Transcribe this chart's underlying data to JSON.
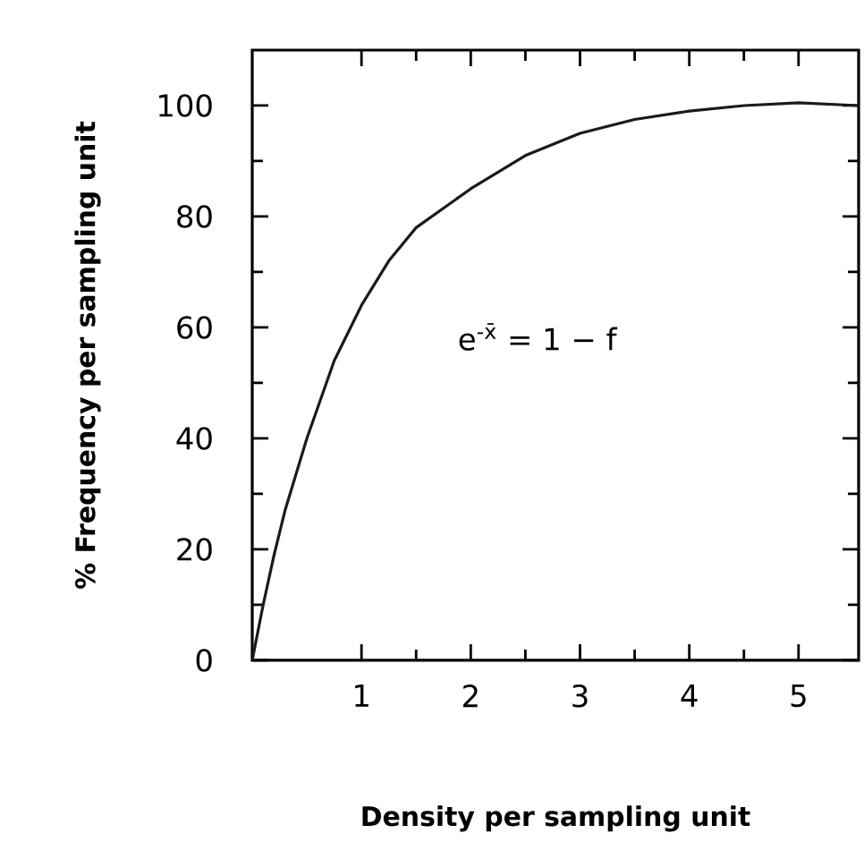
{
  "chart_data": {
    "type": "line",
    "xlabel": "Density per sampling unit",
    "ylabel": "% Frequency per sampling unit",
    "annotations": [
      "e$^{-x̄}$ = 1 − f"
    ],
    "x": [
      0,
      0.1,
      0.2,
      0.3,
      0.5,
      0.75,
      1,
      1.25,
      1.5,
      2,
      2.5,
      3,
      3.5,
      4,
      4.5,
      5,
      5.55
    ],
    "series": [
      {
        "color": "#1a1a1a",
        "values": [
          0,
          10,
          19,
          27,
          40,
          54,
          64,
          72,
          78,
          85,
          91,
          95,
          97.5,
          99,
          100,
          100.5,
          100
        ]
      }
    ],
    "xlim": [
      0,
      5.55
    ],
    "ylim": [
      0,
      110
    ],
    "xticks": [
      1,
      2,
      3,
      4,
      5
    ],
    "yticks": [
      0,
      20,
      40,
      60,
      80,
      100
    ],
    "grid": false,
    "marker": "none",
    "line_style": "solid"
  }
}
